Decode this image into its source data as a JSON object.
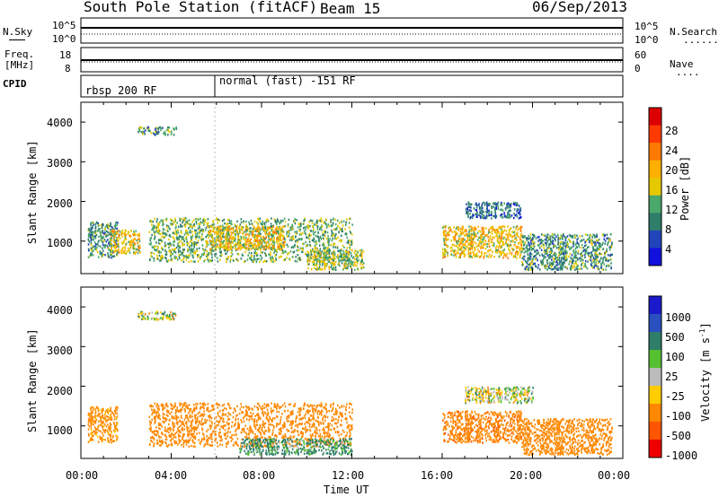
{
  "header": {
    "station": "South Pole Station (fitACF)",
    "beam": "Beam 15",
    "date": "06/Sep/2013"
  },
  "panels": {
    "nsky": {
      "left_label": "N.Sky",
      "left_ticks": [
        "10^5",
        "10^0"
      ],
      "right_ticks": [
        "10^5",
        "10^0"
      ],
      "right_label": "N.Search",
      "right_legend": "......."
    },
    "freq": {
      "left_label_1": "Freq.",
      "left_label_2": "[MHz]",
      "left_ticks": [
        "18",
        "8"
      ],
      "right_ticks": [
        "60",
        "0"
      ],
      "right_label": "Nave",
      "right_legend": "...."
    },
    "cpid": {
      "label": "CPID",
      "modes": [
        "rbsp 200 RF",
        "normal (fast) -151 RF"
      ]
    }
  },
  "axes": {
    "ylabel": "Slant Range [km]",
    "xlabel": "Time UT",
    "yticks": [
      "1000",
      "2000",
      "3000",
      "4000"
    ],
    "xticks": [
      "00:00",
      "04:00",
      "08:00",
      "12:00",
      "16:00",
      "20:00",
      "00:00"
    ]
  },
  "colorbars": {
    "power": {
      "label": "Power [dB]",
      "ticks": [
        "28",
        "24",
        "20",
        "16",
        "12",
        "8",
        "4"
      ],
      "colors": [
        "#dd0000",
        "#ff3a00",
        "#ff7a00",
        "#ffb000",
        "#e6c800",
        "#4aa86a",
        "#2e7e6a",
        "#2244bb",
        "#1111dd"
      ]
    },
    "velocity": {
      "label": "Velocity [m s",
      "label_sup": "-1",
      "label_end": "]",
      "ticks": [
        "1000",
        "500",
        "100",
        "25",
        "-25",
        "-100",
        "-500",
        "-1000"
      ],
      "colors": [
        "#1a1acc",
        "#2a50c0",
        "#2e7e6a",
        "#55c030",
        "#bbbbbb",
        "#ffcc00",
        "#ff8800",
        "#ff5500",
        "#ee0000"
      ]
    }
  },
  "chart_data": [
    {
      "type": "heatmap",
      "title": "Power",
      "xlabel": "Time UT",
      "ylabel": "Slant Range [km]",
      "x_range_hours": [
        0,
        24
      ],
      "ylim": [
        180,
        4500
      ],
      "colorbar_label": "Power [dB]",
      "colorbar_ticks": [
        4,
        8,
        12,
        16,
        20,
        24,
        28
      ],
      "patches": [
        {
          "t": [
            0.3,
            1.6
          ],
          "r": [
            600,
            1500
          ],
          "value": 12
        },
        {
          "t": [
            1.3,
            2.6
          ],
          "r": [
            700,
            1300
          ],
          "value": 20
        },
        {
          "t": [
            2.5,
            4.2
          ],
          "r": [
            3700,
            3900
          ],
          "value": 12
        },
        {
          "t": [
            3.0,
            12.0
          ],
          "r": [
            500,
            1600
          ],
          "value": 14
        },
        {
          "t": [
            5.5,
            9.0
          ],
          "r": [
            800,
            1400
          ],
          "value": 20
        },
        {
          "t": [
            10.0,
            12.5
          ],
          "r": [
            300,
            800
          ],
          "value": 16
        },
        {
          "t": [
            16.0,
            19.5
          ],
          "r": [
            600,
            1400
          ],
          "value": 20
        },
        {
          "t": [
            17.0,
            19.5
          ],
          "r": [
            1600,
            2000
          ],
          "value": 8
        },
        {
          "t": [
            19.5,
            23.5
          ],
          "r": [
            300,
            1200
          ],
          "value": 12
        }
      ]
    },
    {
      "type": "heatmap",
      "title": "Velocity",
      "xlabel": "Time UT",
      "ylabel": "Slant Range [km]",
      "x_range_hours": [
        0,
        24
      ],
      "ylim": [
        180,
        4500
      ],
      "colorbar_label": "Velocity [m s-1]",
      "colorbar_ticks": [
        -1000,
        -500,
        -100,
        -25,
        25,
        100,
        500,
        1000
      ],
      "patches": [
        {
          "t": [
            0.3,
            1.6
          ],
          "r": [
            600,
            1500
          ],
          "value": -200
        },
        {
          "t": [
            2.5,
            4.2
          ],
          "r": [
            3700,
            3900
          ],
          "value": 20
        },
        {
          "t": [
            3.0,
            12.0
          ],
          "r": [
            500,
            1600
          ],
          "value": -300
        },
        {
          "t": [
            7.0,
            12.0
          ],
          "r": [
            300,
            700
          ],
          "value": 150
        },
        {
          "t": [
            16.0,
            19.5
          ],
          "r": [
            600,
            1400
          ],
          "value": -400
        },
        {
          "t": [
            17.0,
            20.0
          ],
          "r": [
            1600,
            2000
          ],
          "value": 0
        },
        {
          "t": [
            19.5,
            23.5
          ],
          "r": [
            300,
            1200
          ],
          "value": -350
        }
      ]
    }
  ]
}
